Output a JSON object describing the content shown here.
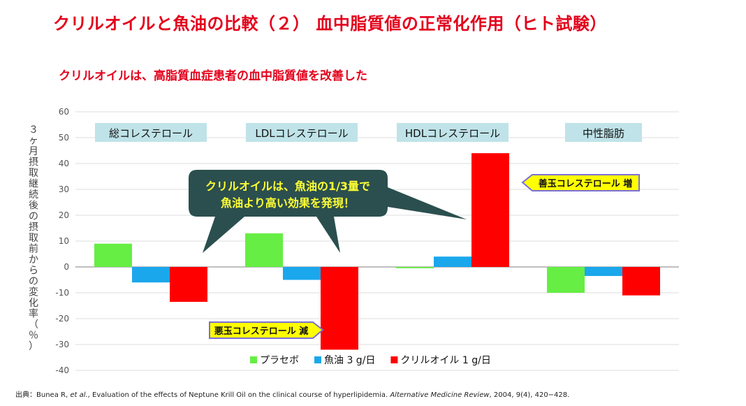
{
  "slide": {
    "title": "クリルオイルと魚油の比較（２） 血中脂質値の正常化作用（ヒト試験）",
    "subtitle": "クリルオイルは、高脂質血症患者の血中脂質値を改善した"
  },
  "callout": {
    "line1": "クリルオイルは、魚油の1/3量で",
    "line2": "魚油より高い効果を発現！",
    "color": "#2b4f4f",
    "text_color": "#ffff33"
  },
  "arrows": {
    "good_label": "善玉コレステロール 増",
    "bad_label": "悪玉コレステロール 減",
    "fill": "#ffff00",
    "border": "#7a6fd6"
  },
  "citation": {
    "prefix": "出典：Bunea R, ",
    "etal": "et al.",
    "middle": ", Evaluation of the effects of Neptune Krill Oil on the clinical course of hyperlipidemia. ",
    "journal": "Alternative Medicine Review",
    "suffix": ", 2004, 9(4), 420−428."
  },
  "chart_data": {
    "type": "bar",
    "categories": [
      "総コレステロール",
      "LDLコレステロール",
      "HDLコレステロール",
      "中性脂肪"
    ],
    "series": [
      {
        "name": "プラセボ",
        "color": "#66ee44",
        "values": [
          9,
          13,
          -0.5,
          -10
        ]
      },
      {
        "name": "魚油 3 g/日",
        "color": "#1aa7ec",
        "values": [
          -6,
          -5,
          4,
          -3.5
        ]
      },
      {
        "name": "クリルオイル 1 g/日",
        "color": "#ff0000",
        "values": [
          -13.5,
          -32,
          44,
          -11
        ]
      }
    ],
    "ylabel": "３ヶ月摂取継続後の摂取前からの変化率（％）",
    "ylim": [
      -40,
      60
    ],
    "yticks": [
      "60",
      "50",
      "40",
      "30",
      "20",
      "10",
      "0",
      "-10",
      "-20",
      "-30",
      "-40"
    ],
    "grid": true,
    "category_label_bg": "#bfe3e8",
    "legend_position": "bottom-center"
  }
}
